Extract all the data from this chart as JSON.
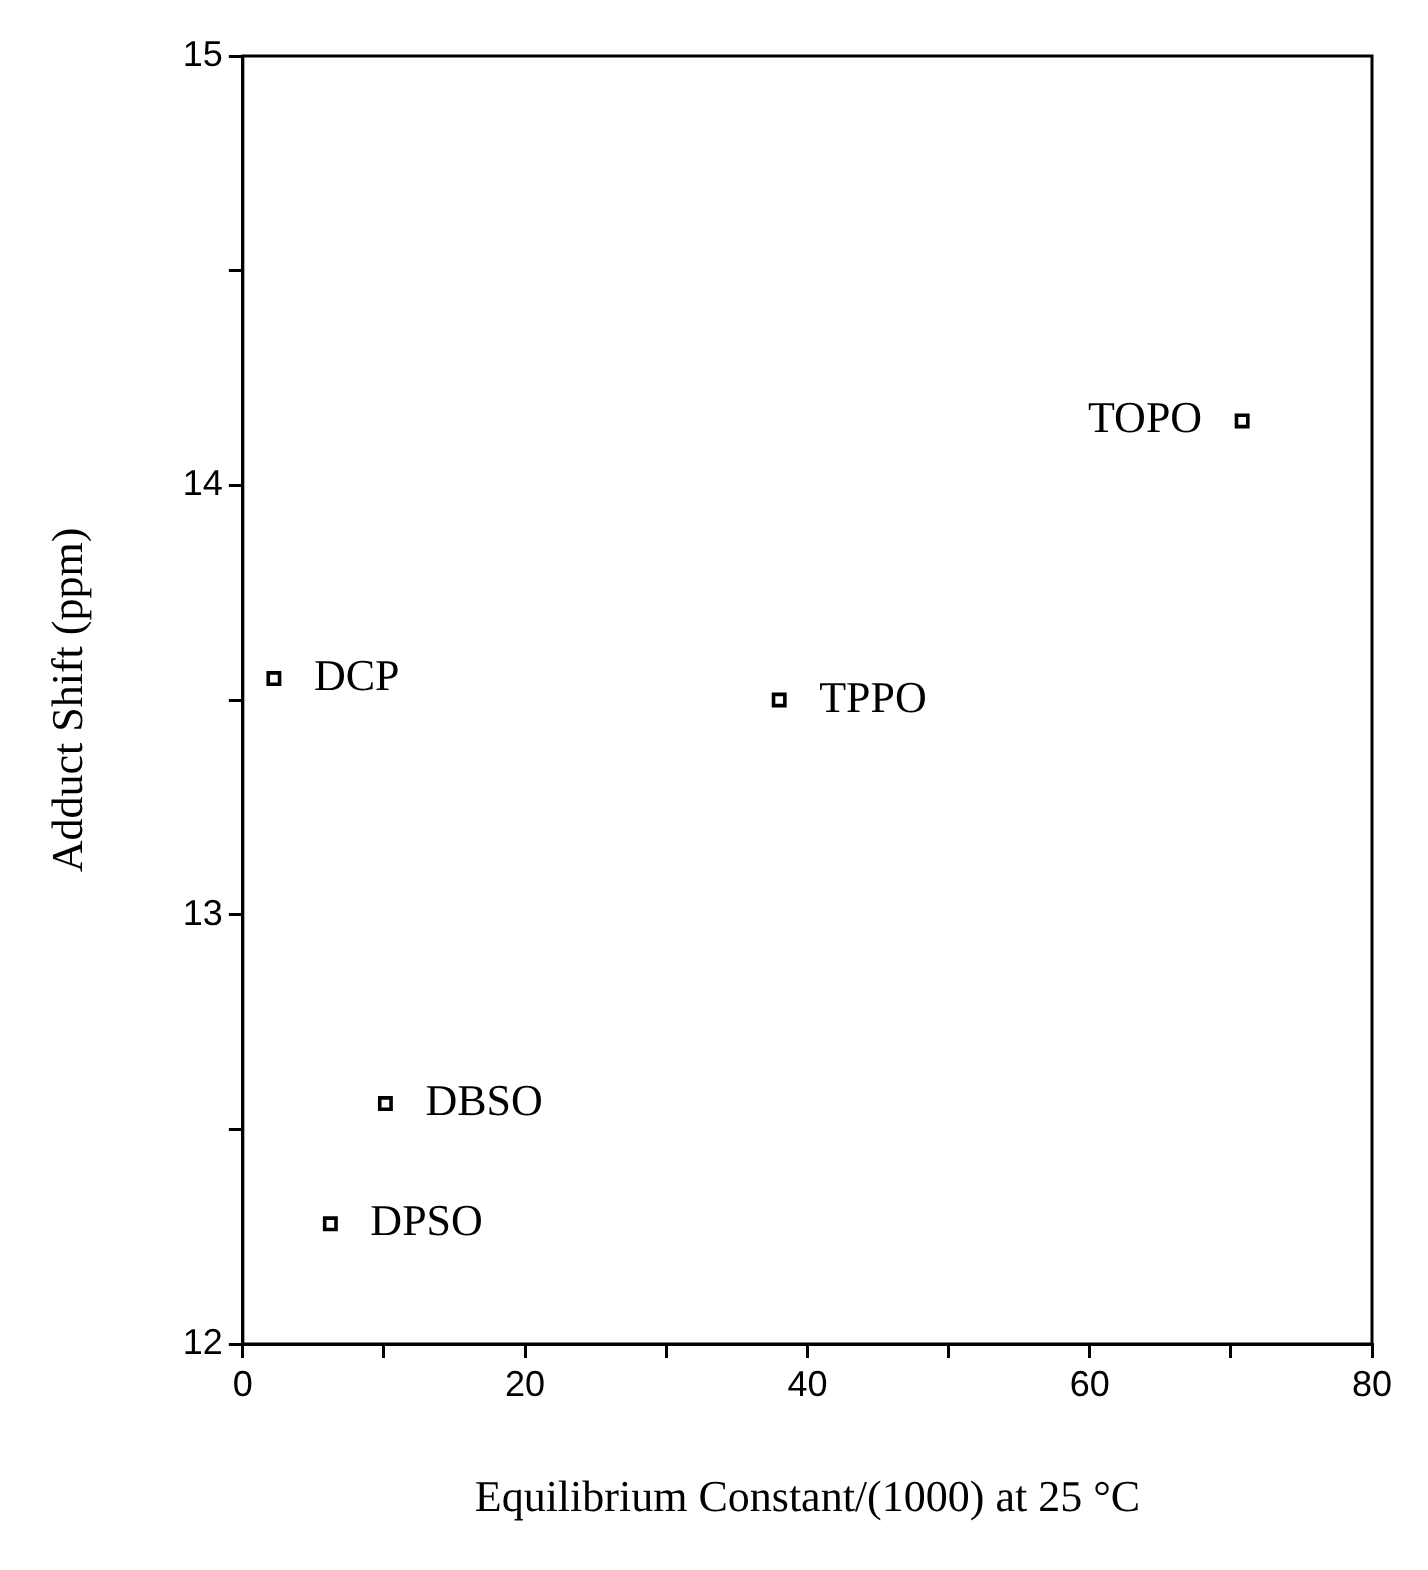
{
  "chart_data": {
    "type": "scatter",
    "xlabel": "Equilibrium Constant/(1000) at 25 °C",
    "ylabel": "Adduct Shift (ppm)",
    "x": [
      70.8,
      2.2,
      38.0,
      10.1,
      6.2
    ],
    "values": [
      14.15,
      13.55,
      13.5,
      12.56,
      12.28
    ],
    "color": "#000000",
    "marker": "square",
    "xlim": [
      0,
      80
    ],
    "xticks": [
      0,
      {
        "value": 10,
        "label": null
      },
      20,
      {
        "value": 30,
        "label": null
      },
      40,
      {
        "value": 50,
        "label": null
      },
      60,
      {
        "value": 70,
        "label": null
      },
      80
    ],
    "ylim": [
      12,
      15
    ],
    "yticks": [
      12,
      {
        "value": 12.5,
        "label": null
      },
      13,
      {
        "value": 13.5,
        "label": null
      },
      14,
      {
        "value": 14.5,
        "label": null
      },
      15
    ],
    "annotations": [
      {
        "text": "TOPO",
        "x": 70.8,
        "y": 14.15
      },
      {
        "text": "DCP",
        "x": 2.2,
        "y": 13.55
      },
      {
        "text": "TPPO",
        "x": 38.0,
        "y": 13.5
      },
      {
        "text": "DBSO",
        "x": 10.1,
        "y": 12.56
      },
      {
        "text": "DPSO",
        "x": 6.2,
        "y": 12.28
      }
    ]
  }
}
